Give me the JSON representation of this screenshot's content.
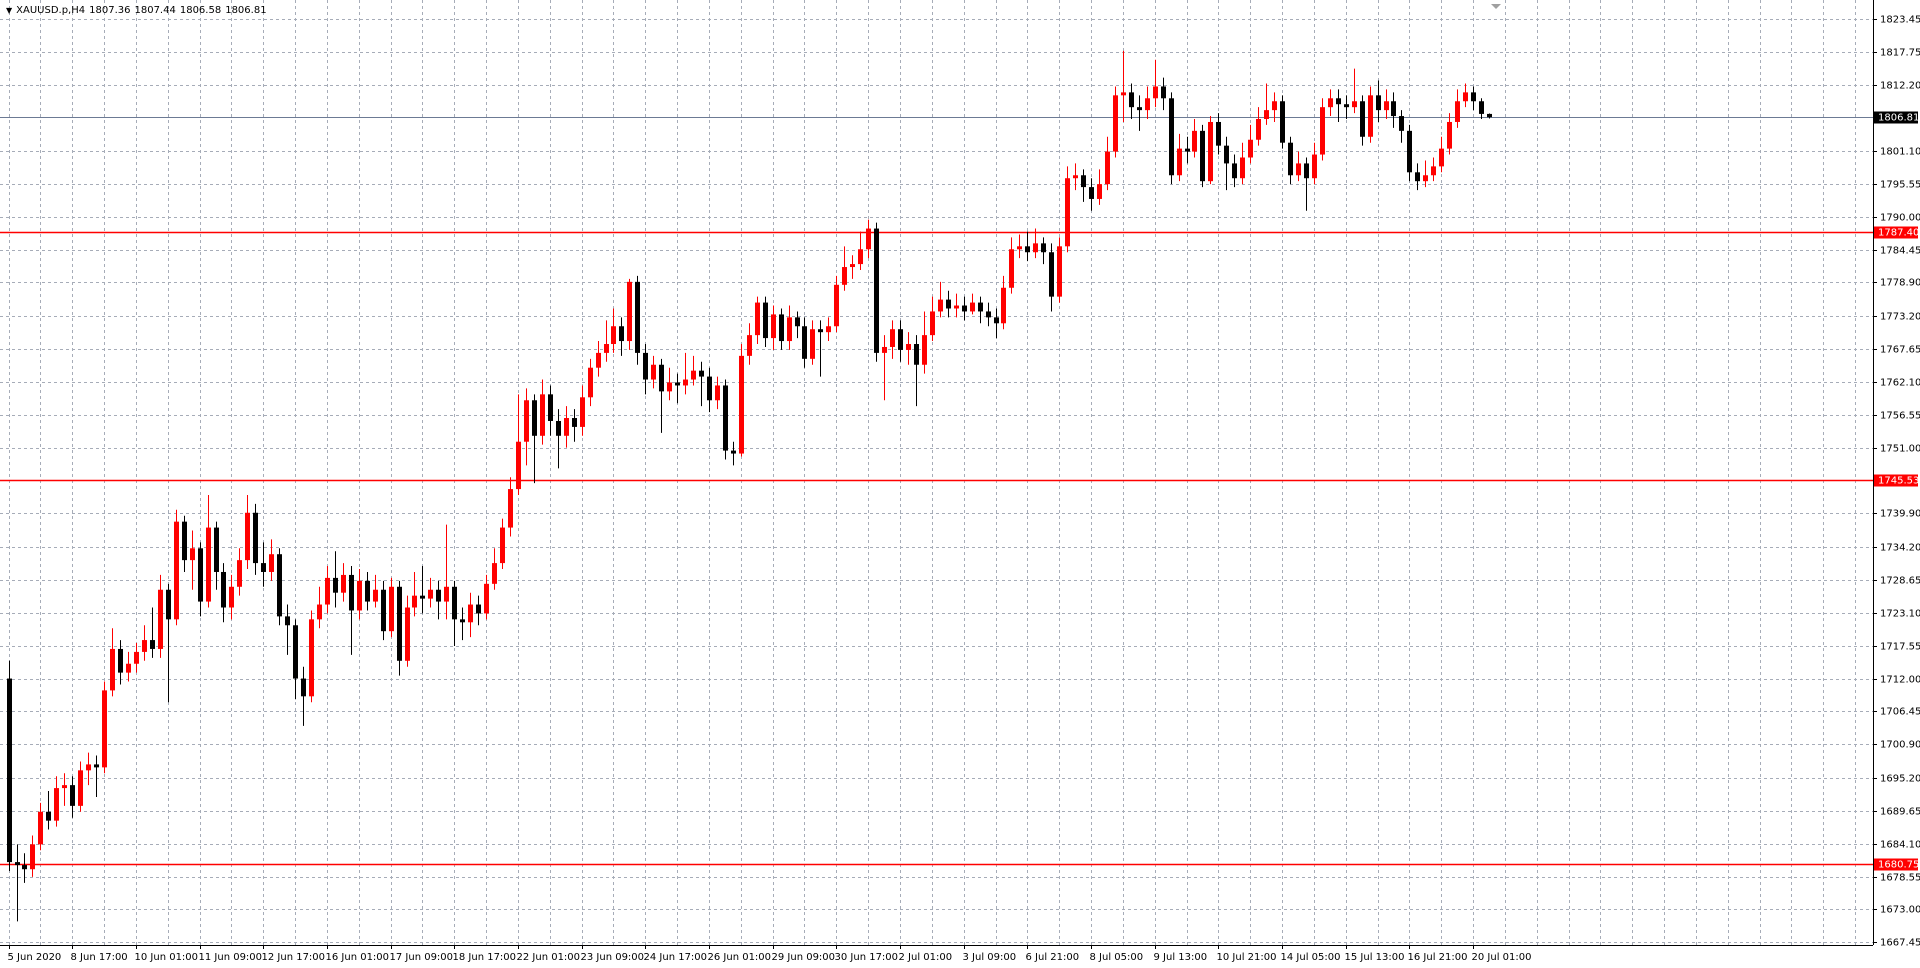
{
  "chart_data": {
    "type": "candlestick",
    "title": "XAUUSD.p,H4",
    "bull_color": "#ff0000",
    "bear_color": "#000000",
    "grid": true,
    "ylim": [
      1667.0,
      1826.6
    ],
    "yticks": [
      1823.45,
      1817.75,
      {
        "value": 1812.2,
        "label": "1812.20"
      },
      {
        "value": 1801.1,
        "label": "1801.10"
      },
      1795.55,
      {
        "value": 1790,
        "label": "1790.00"
      },
      1784.45,
      {
        "value": 1778.9,
        "label": "1778.90"
      },
      {
        "value": 1773.2,
        "label": "1773.20"
      },
      1767.65,
      {
        "value": 1762.1,
        "label": "1762.10"
      },
      1756.55,
      {
        "value": 1751,
        "label": "1751.00"
      },
      {
        "value": 1739.9,
        "label": "1739.90"
      },
      {
        "value": 1734.2,
        "label": "1734.20"
      },
      1728.65,
      {
        "value": 1723.1,
        "label": "1723.10"
      },
      1717.55,
      {
        "value": 1712,
        "label": "1712.00"
      },
      1706.45,
      {
        "value": 1700.9,
        "label": "1700.90"
      },
      {
        "value": 1695.2,
        "label": "1695.20"
      },
      1689.65,
      {
        "value": 1684.1,
        "label": "1684.10"
      },
      1678.55,
      {
        "value": 1673,
        "label": "1673.00"
      },
      1667.45
    ],
    "hlines": [
      {
        "value": 1787.4,
        "label": "1787.40",
        "color": "#ff0000"
      },
      {
        "value": 1745.53,
        "label": "1745.53",
        "color": "#ff0000"
      },
      {
        "value": 1680.75,
        "label": "1680.75",
        "color": "#ff0000"
      }
    ],
    "price_line_color": "#6c7a94",
    "categories": [
      "5 Jun 2020",
      null,
      null,
      null,
      null,
      null,
      null,
      null,
      "8 Jun 17:00",
      null,
      null,
      null,
      null,
      null,
      null,
      null,
      "10 Jun 01:00",
      null,
      null,
      null,
      null,
      null,
      null,
      null,
      "11 Jun 09:00",
      null,
      null,
      null,
      null,
      null,
      null,
      null,
      "12 Jun 17:00",
      null,
      null,
      null,
      null,
      null,
      null,
      null,
      "16 Jun 01:00",
      null,
      null,
      null,
      null,
      null,
      null,
      null,
      "17 Jun 09:00",
      null,
      null,
      null,
      null,
      null,
      null,
      null,
      "18 Jun 17:00",
      null,
      null,
      null,
      null,
      null,
      null,
      null,
      "22 Jun 01:00",
      null,
      null,
      null,
      null,
      null,
      null,
      null,
      "23 Jun 09:00",
      null,
      null,
      null,
      null,
      null,
      null,
      null,
      "24 Jun 17:00",
      null,
      null,
      null,
      null,
      null,
      null,
      null,
      "26 Jun 01:00",
      null,
      null,
      null,
      null,
      null,
      null,
      null,
      "29 Jun 09:00",
      null,
      null,
      null,
      null,
      null,
      null,
      null,
      "30 Jun 17:00",
      null,
      null,
      null,
      null,
      null,
      null,
      null,
      "2 Jul 01:00",
      null,
      null,
      null,
      null,
      null,
      null,
      null,
      "3 Jul 09:00",
      null,
      null,
      null,
      null,
      null,
      null,
      null,
      "6 Jul 21:00",
      null,
      null,
      null,
      null,
      null,
      null,
      null,
      "8 Jul 05:00",
      null,
      null,
      null,
      null,
      null,
      null,
      null,
      "9 Jul 13:00",
      null,
      null,
      null,
      null,
      null,
      null,
      null,
      "10 Jul 21:00",
      null,
      null,
      null,
      null,
      null,
      null,
      null,
      "14 Jul 05:00",
      null,
      null,
      null,
      null,
      null,
      null,
      null,
      "15 Jul 13:00",
      null,
      null,
      null,
      null,
      null,
      null,
      null,
      "16 Jul 21:00",
      null,
      null,
      null,
      null,
      null,
      null,
      null,
      "20 Jul 01:00",
      null,
      null
    ],
    "open": [
      1712.0,
      1681.0,
      1680.5,
      1679.8,
      1684.0,
      1689.5,
      1688.0,
      1693.5,
      1694.0,
      1690.5,
      1696.5,
      1697.5,
      1697.0,
      1710.0,
      1717.0,
      1713.0,
      1714.5,
      1716.5,
      1718.5,
      1717.0,
      1727.0,
      1722.0,
      1738.5,
      1732.0,
      1734.0,
      1725.0,
      1737.5,
      1730.0,
      1724.0,
      1727.5,
      1732.0,
      1740.0,
      1731.5,
      1730.0,
      1733.0,
      1722.5,
      1721.0,
      1712.0,
      1709.0,
      1722.0,
      1724.5,
      1729.0,
      1726.5,
      1729.5,
      1723.5,
      1728.5,
      1725.0,
      1727.0,
      1720.0,
      1727.5,
      1715.0,
      1724.0,
      1726.0,
      1725.5,
      1727.0,
      1725.0,
      1727.5,
      1722.0,
      1721.5,
      1724.5,
      1723.0,
      1728.0,
      1731.5,
      1737.5,
      1744.0,
      1752.0,
      1759.0,
      1753.0,
      1760.0,
      1755.5,
      1753.0,
      1756.0,
      1754.5,
      1759.5,
      1764.5,
      1767.0,
      1768.5,
      1771.5,
      1769.0,
      1779.0,
      1767.0,
      1762.5,
      1765.0,
      1760.5,
      1762.0,
      1761.5,
      1762.5,
      1764.0,
      1763.0,
      1759.0,
      1761.5,
      1750.5,
      1750.0,
      1766.5,
      1770.0,
      1775.5,
      1769.5,
      1773.5,
      1769.0,
      1773.0,
      1771.5,
      1766.0,
      1771.0,
      1770.5,
      1771.5,
      1778.5,
      1781.5,
      1782.0,
      1784.5,
      1788.0,
      1767.0,
      1768.0,
      1771.0,
      1767.5,
      1768.5,
      1765.0,
      1770.0,
      1774.0,
      1776.0,
      1774.5,
      1775.0,
      1774.0,
      1775.5,
      1774.0,
      1773.0,
      1772.0,
      1778.0,
      1784.5,
      1785.0,
      1784.0,
      1785.5,
      1784.0,
      1776.5,
      1785.0,
      1796.5,
      1797.0,
      1795.0,
      1793.0,
      1795.5,
      1801.0,
      1810.5,
      1811.0,
      1808.5,
      1808.0,
      1810.0,
      1812.0,
      1810.0,
      1797.0,
      1801.5,
      1801.0,
      1804.5,
      1796.0,
      1806.0,
      1802.0,
      1799.0,
      1796.5,
      1800.0,
      1803.0,
      1806.5,
      1808.0,
      1809.5,
      1802.5,
      1797.0,
      1799.0,
      1796.5,
      1800.5,
      1808.5,
      1810.0,
      1809.0,
      1808.5,
      1809.5,
      1803.5,
      1810.5,
      1808.0,
      1809.5,
      1807.0,
      1804.5,
      1797.5,
      1796.0,
      1797.0,
      1798.5,
      1801.5,
      1806.0,
      1809.5,
      1811.0,
      1809.5,
      1807.36
    ],
    "high": [
      1715.0,
      1684.0,
      1682.5,
      1685.5,
      1691.0,
      1693.0,
      1695.5,
      1696.0,
      1695.5,
      1698.0,
      1699.5,
      1699.0,
      1711.5,
      1720.5,
      1718.5,
      1716.5,
      1718.0,
      1721.0,
      1724.0,
      1729.5,
      1728.0,
      1740.5,
      1739.5,
      1737.0,
      1735.0,
      1743.0,
      1738.5,
      1731.5,
      1729.5,
      1734.0,
      1743.0,
      1741.5,
      1735.0,
      1735.5,
      1734.0,
      1724.5,
      1722.0,
      1714.0,
      1723.5,
      1727.5,
      1731.0,
      1733.5,
      1731.5,
      1731.0,
      1730.5,
      1730.0,
      1729.5,
      1728.5,
      1729.0,
      1728.5,
      1726.0,
      1730.0,
      1731.0,
      1729.0,
      1728.5,
      1738.0,
      1728.5,
      1724.0,
      1726.5,
      1726.0,
      1729.5,
      1734.0,
      1739.0,
      1746.0,
      1760.0,
      1761.0,
      1760.0,
      1762.5,
      1761.5,
      1757.5,
      1758.0,
      1757.5,
      1761.5,
      1766.0,
      1769.0,
      1772.5,
      1774.5,
      1773.0,
      1779.5,
      1780.0,
      1768.5,
      1766.5,
      1766.0,
      1764.5,
      1763.5,
      1767.0,
      1766.5,
      1765.5,
      1764.5,
      1763.0,
      1762.5,
      1752.0,
      1768.5,
      1772.0,
      1776.5,
      1776.5,
      1775.0,
      1774.5,
      1775.0,
      1774.0,
      1773.0,
      1772.5,
      1772.5,
      1773.0,
      1780.0,
      1785.0,
      1783.5,
      1787.5,
      1789.5,
      1789.0,
      1770.0,
      1772.5,
      1772.5,
      1770.5,
      1770.0,
      1774.0,
      1776.5,
      1779.0,
      1777.5,
      1777.0,
      1776.5,
      1777.0,
      1776.5,
      1775.5,
      1774.5,
      1780.0,
      1786.5,
      1787.0,
      1787.5,
      1788.0,
      1786.5,
      1785.5,
      1786.5,
      1798.5,
      1799.0,
      1798.0,
      1796.5,
      1798.0,
      1803.5,
      1812.0,
      1818.0,
      1812.5,
      1810.5,
      1812.0,
      1816.5,
      1813.5,
      1811.0,
      1804.0,
      1803.5,
      1806.5,
      1805.5,
      1807.0,
      1807.5,
      1803.5,
      1800.5,
      1802.5,
      1805.5,
      1808.5,
      1812.5,
      1811.0,
      1810.5,
      1803.5,
      1801.0,
      1800.0,
      1802.5,
      1810.0,
      1811.5,
      1811.5,
      1810.5,
      1815.0,
      1810.5,
      1812.0,
      1813.0,
      1811.5,
      1811.0,
      1808.0,
      1805.5,
      1799.0,
      1799.5,
      1800.0,
      1803.5,
      1807.5,
      1811.5,
      1812.5,
      1812.0,
      1810.0,
      1807.44
    ],
    "low": [
      1679.5,
      1671.0,
      1677.5,
      1678.5,
      1683.0,
      1686.5,
      1687.0,
      1690.5,
      1688.5,
      1689.5,
      1694.0,
      1692.0,
      1696.0,
      1709.0,
      1711.0,
      1711.5,
      1713.0,
      1715.0,
      1715.5,
      1715.5,
      1708.0,
      1721.0,
      1730.0,
      1727.0,
      1722.5,
      1724.0,
      1727.0,
      1721.5,
      1722.0,
      1726.0,
      1730.5,
      1729.5,
      1727.5,
      1728.5,
      1721.0,
      1716.0,
      1708.5,
      1704.0,
      1708.0,
      1720.5,
      1723.0,
      1724.0,
      1725.0,
      1716.0,
      1722.0,
      1723.5,
      1724.0,
      1718.5,
      1719.0,
      1712.5,
      1714.0,
      1722.5,
      1723.0,
      1724.0,
      1722.0,
      1722.0,
      1717.5,
      1718.5,
      1719.0,
      1721.0,
      1722.0,
      1727.0,
      1730.5,
      1736.0,
      1743.0,
      1748.0,
      1745.0,
      1751.5,
      1753.0,
      1747.5,
      1751.0,
      1752.0,
      1753.0,
      1758.0,
      1763.0,
      1765.5,
      1767.0,
      1766.5,
      1767.5,
      1765.0,
      1760.0,
      1761.0,
      1753.5,
      1759.0,
      1758.5,
      1760.0,
      1761.5,
      1758.0,
      1757.0,
      1757.5,
      1749.0,
      1748.0,
      1749.5,
      1765.0,
      1768.5,
      1768.0,
      1767.5,
      1767.5,
      1767.5,
      1769.5,
      1764.5,
      1765.0,
      1763.0,
      1769.0,
      1770.5,
      1777.5,
      1779.5,
      1781.0,
      1783.0,
      1765.5,
      1759.0,
      1766.0,
      1765.5,
      1765.0,
      1758.0,
      1763.5,
      1769.0,
      1773.0,
      1773.0,
      1773.0,
      1772.5,
      1773.5,
      1772.0,
      1771.5,
      1769.5,
      1771.0,
      1777.0,
      1783.0,
      1782.5,
      1783.0,
      1782.0,
      1774.0,
      1775.5,
      1784.0,
      1794.5,
      1792.5,
      1791.0,
      1792.0,
      1794.5,
      1800.0,
      1806.0,
      1806.5,
      1804.5,
      1806.5,
      1808.5,
      1808.0,
      1795.5,
      1796.0,
      1799.0,
      1800.0,
      1795.0,
      1795.5,
      1800.5,
      1794.5,
      1795.0,
      1795.5,
      1799.0,
      1802.0,
      1805.5,
      1806.0,
      1801.5,
      1795.5,
      1796.0,
      1791.0,
      1795.5,
      1799.5,
      1807.0,
      1806.0,
      1806.5,
      1807.5,
      1802.0,
      1802.5,
      1806.0,
      1806.5,
      1805.0,
      1802.5,
      1796.0,
      1794.5,
      1795.0,
      1796.0,
      1797.5,
      1800.5,
      1805.0,
      1808.5,
      1808.0,
      1806.5,
      1806.58
    ],
    "close": [
      1681.0,
      1680.5,
      1679.8,
      1684.0,
      1689.5,
      1688.0,
      1693.5,
      1694.0,
      1690.5,
      1696.5,
      1697.5,
      1697.0,
      1710.0,
      1717.0,
      1713.0,
      1714.5,
      1716.5,
      1718.5,
      1717.0,
      1727.0,
      1722.0,
      1738.5,
      1732.0,
      1734.0,
      1725.0,
      1737.5,
      1730.0,
      1724.0,
      1727.5,
      1732.0,
      1740.0,
      1731.5,
      1730.0,
      1733.0,
      1722.5,
      1721.0,
      1712.0,
      1709.0,
      1722.0,
      1724.5,
      1729.0,
      1726.5,
      1729.5,
      1723.5,
      1728.5,
      1725.0,
      1727.0,
      1720.0,
      1727.5,
      1715.0,
      1724.0,
      1726.0,
      1725.5,
      1727.0,
      1725.0,
      1727.5,
      1722.0,
      1721.5,
      1724.5,
      1723.0,
      1728.0,
      1731.5,
      1737.5,
      1744.0,
      1752.0,
      1759.0,
      1753.0,
      1760.0,
      1755.5,
      1753.0,
      1756.0,
      1754.5,
      1759.5,
      1764.5,
      1767.0,
      1768.5,
      1771.5,
      1769.0,
      1779.0,
      1767.0,
      1762.5,
      1765.0,
      1760.5,
      1762.0,
      1761.5,
      1762.5,
      1764.0,
      1763.0,
      1759.0,
      1761.5,
      1750.5,
      1750.0,
      1766.5,
      1770.0,
      1775.5,
      1769.5,
      1773.5,
      1769.0,
      1773.0,
      1771.5,
      1766.0,
      1771.0,
      1770.5,
      1771.5,
      1778.5,
      1781.5,
      1782.0,
      1784.5,
      1788.0,
      1767.0,
      1768.0,
      1771.0,
      1767.5,
      1768.5,
      1765.0,
      1770.0,
      1774.0,
      1776.0,
      1774.5,
      1775.0,
      1774.0,
      1775.5,
      1774.0,
      1773.0,
      1772.0,
      1778.0,
      1784.5,
      1785.0,
      1784.0,
      1785.5,
      1784.0,
      1776.5,
      1785.0,
      1796.5,
      1797.0,
      1795.0,
      1793.0,
      1795.5,
      1801.0,
      1810.5,
      1811.0,
      1808.5,
      1808.0,
      1810.0,
      1812.0,
      1810.0,
      1797.0,
      1801.5,
      1801.0,
      1804.5,
      1796.0,
      1806.0,
      1802.0,
      1799.0,
      1796.5,
      1800.0,
      1803.0,
      1806.5,
      1808.0,
      1809.5,
      1802.5,
      1797.0,
      1799.0,
      1796.5,
      1800.5,
      1808.5,
      1810.0,
      1809.0,
      1808.5,
      1809.5,
      1803.5,
      1810.5,
      1808.0,
      1809.5,
      1807.0,
      1804.5,
      1797.5,
      1796.0,
      1797.0,
      1798.5,
      1801.5,
      1806.0,
      1809.5,
      1811.0,
      1809.5,
      1807.36,
      1806.81
    ]
  }
}
